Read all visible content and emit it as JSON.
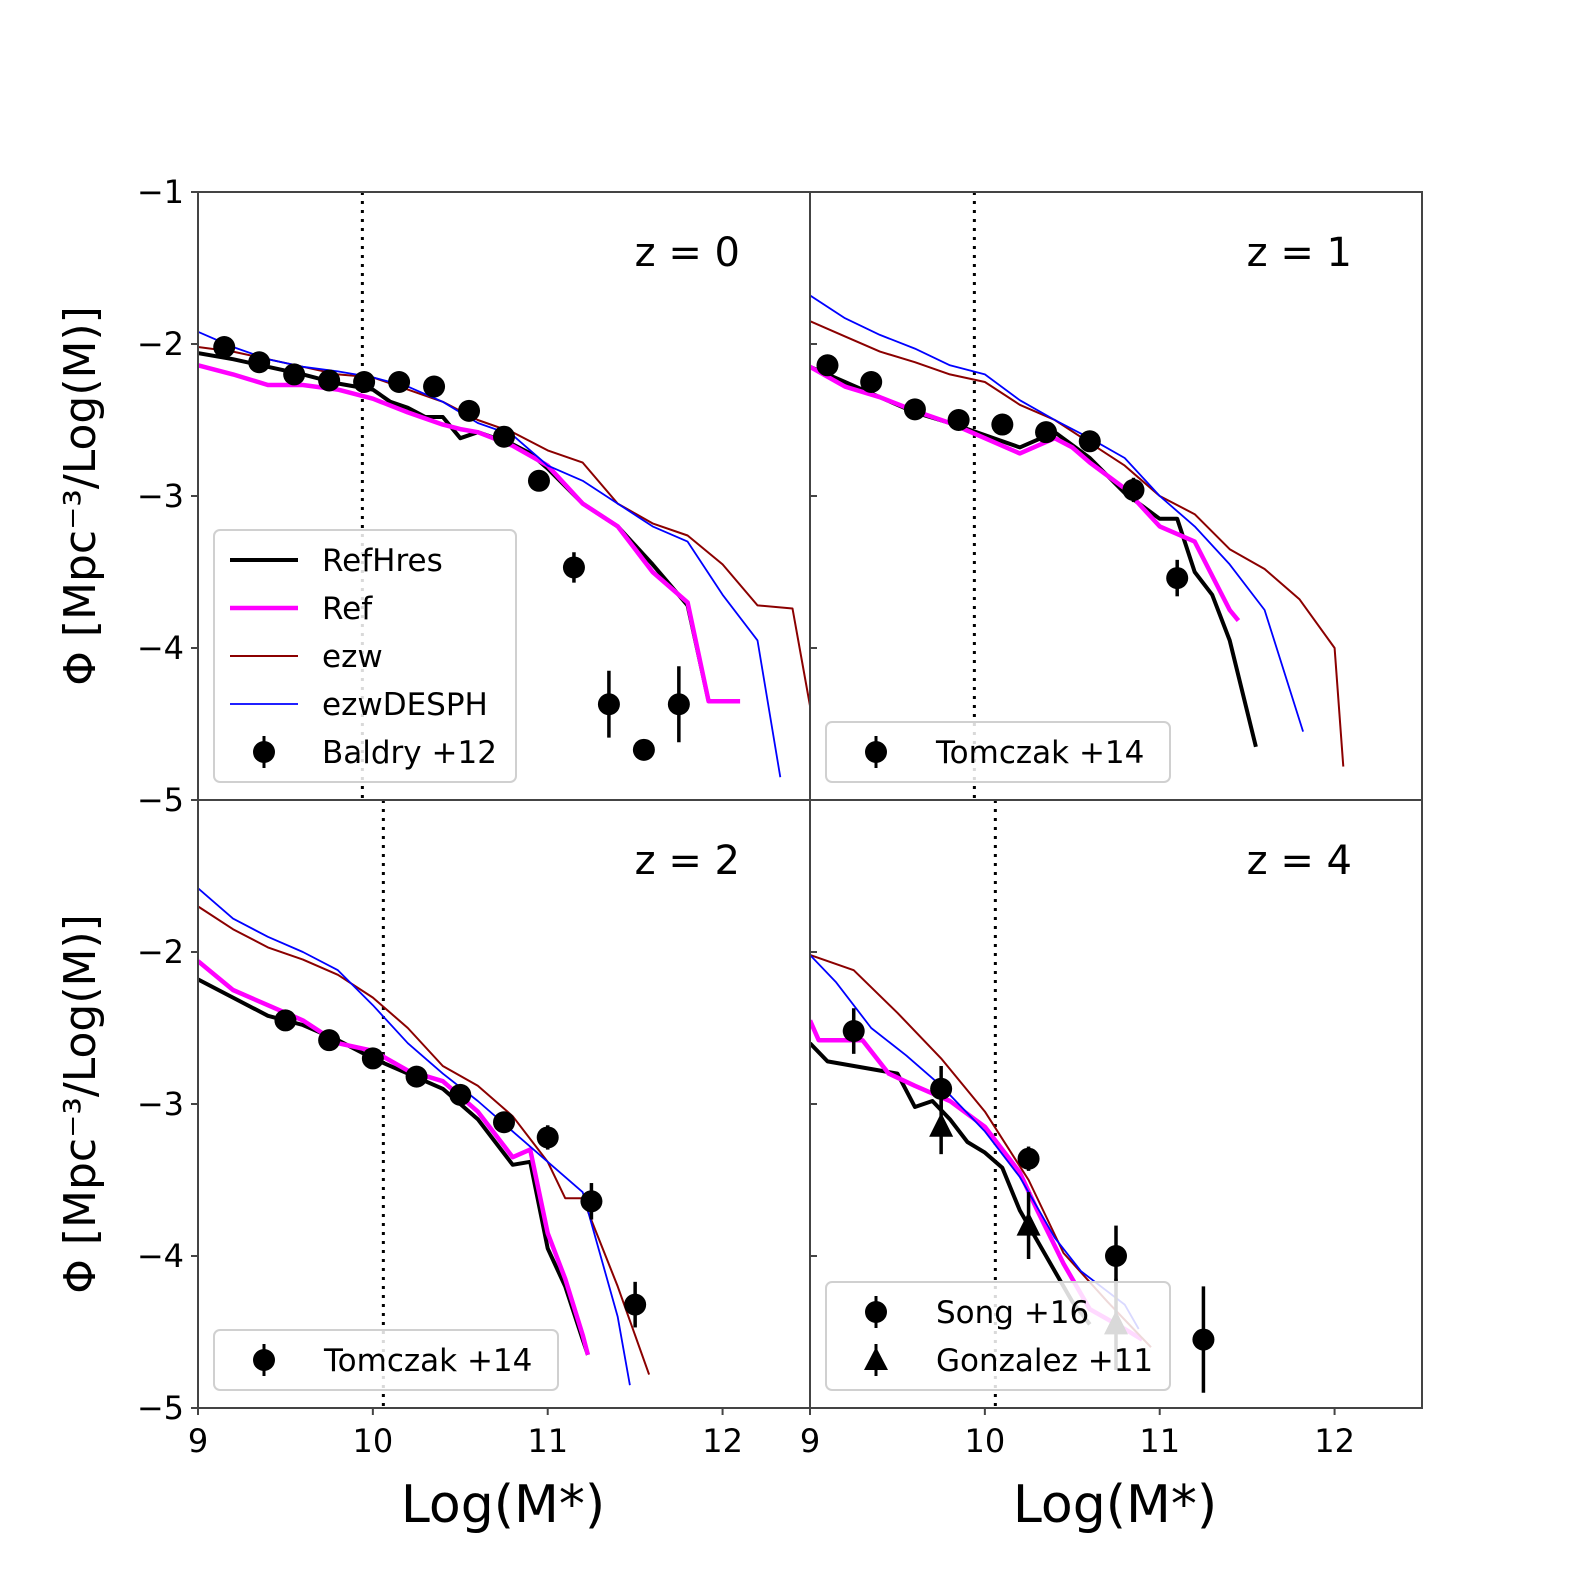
{
  "chart_data": {
    "type": "line",
    "shared": {
      "xlabel": "Log(M*)",
      "ylabel": "Φ [Mpc⁻³/Log(M)]",
      "xlim": [
        9,
        12.5
      ],
      "ylim": [
        -5,
        -1
      ],
      "xticks": [
        "9",
        "10",
        "11",
        "12"
      ],
      "xtick_values": [
        9,
        10,
        11,
        12
      ],
      "yticks": [
        "−1",
        "−2",
        "−3",
        "−4",
        "−5"
      ],
      "ytick_values": [
        -1,
        -2,
        -3,
        -4,
        -5
      ],
      "colors": {
        "RefHres": "#000000",
        "Ref": "#ff00ff",
        "ezw": "#8b0000",
        "ezwDESPH": "#0000ff",
        "obs": "#000000"
      }
    },
    "panels": [
      {
        "label": "z = 0",
        "cutoff": 9.94,
        "series": [
          {
            "name": "RefHres",
            "x": [
              9,
              9.2,
              9.4,
              9.6,
              9.8,
              10,
              10.1,
              10.2,
              10.3,
              10.4,
              10.5,
              10.6,
              10.7,
              10.8,
              10.9,
              11,
              11.2,
              11.4,
              11.6,
              11.8,
              11.92,
              12.05
            ],
            "y": [
              -2.06,
              -2.1,
              -2.15,
              -2.2,
              -2.26,
              -2.3,
              -2.38,
              -2.42,
              -2.48,
              -2.48,
              -2.62,
              -2.58,
              -2.62,
              -2.66,
              -2.72,
              -2.82,
              -3.05,
              -3.2,
              -3.45,
              -3.72,
              -4.35,
              -4.35
            ]
          },
          {
            "name": "Ref",
            "x": [
              9,
              9.2,
              9.4,
              9.6,
              9.8,
              10,
              10.2,
              10.4,
              10.5,
              10.6,
              10.8,
              11,
              11.2,
              11.4,
              11.6,
              11.8,
              11.92,
              12.1
            ],
            "y": [
              -2.14,
              -2.2,
              -2.27,
              -2.27,
              -2.3,
              -2.36,
              -2.45,
              -2.53,
              -2.56,
              -2.58,
              -2.67,
              -2.8,
              -3.05,
              -3.2,
              -3.5,
              -3.7,
              -4.35,
              -4.35
            ]
          },
          {
            "name": "ezw",
            "x": [
              9,
              9.2,
              9.4,
              9.6,
              9.8,
              10,
              10.2,
              10.4,
              10.6,
              10.8,
              11,
              11.2,
              11.4,
              11.6,
              11.8,
              12,
              12.2,
              12.4,
              12.5
            ],
            "y": [
              -2.02,
              -2.05,
              -2.1,
              -2.15,
              -2.2,
              -2.22,
              -2.3,
              -2.38,
              -2.5,
              -2.58,
              -2.7,
              -2.78,
              -3.05,
              -3.18,
              -3.26,
              -3.45,
              -3.72,
              -3.74,
              -4.38
            ]
          },
          {
            "name": "ezwDESPH",
            "x": [
              9,
              9.2,
              9.4,
              9.6,
              9.8,
              10,
              10.2,
              10.4,
              10.6,
              10.8,
              11,
              11.2,
              11.4,
              11.6,
              11.8,
              12,
              12.2,
              12.33
            ],
            "y": [
              -1.92,
              -2.02,
              -2.1,
              -2.15,
              -2.18,
              -2.22,
              -2.28,
              -2.38,
              -2.52,
              -2.6,
              -2.8,
              -2.9,
              -3.05,
              -3.2,
              -3.3,
              -3.65,
              -3.95,
              -4.85
            ]
          }
        ],
        "points": [
          {
            "name": "Baldry +12",
            "marker": "circle",
            "x": [
              9.15,
              9.35,
              9.55,
              9.75,
              9.95,
              10.15,
              10.35,
              10.55,
              10.75,
              10.95,
              11.15,
              11.35,
              11.55,
              11.75
            ],
            "y": [
              -2.02,
              -2.12,
              -2.2,
              -2.24,
              -2.25,
              -2.25,
              -2.28,
              -2.44,
              -2.61,
              -2.9,
              -3.47,
              -4.37,
              -4.67,
              -4.37
            ],
            "err": [
              0.03,
              0.03,
              0.03,
              0.03,
              0.03,
              0.03,
              0.03,
              0.03,
              0.04,
              0.05,
              0.1,
              0.22,
              0,
              0.25
            ]
          }
        ],
        "legend": [
          "RefHres",
          "Ref",
          "ezw",
          "ezwDESPH",
          "Baldry +12"
        ],
        "legend_position": "lower-left"
      },
      {
        "label": "z = 1",
        "cutoff": 9.94,
        "series": [
          {
            "name": "RefHres",
            "x": [
              9,
              9.2,
              9.4,
              9.6,
              9.8,
              10,
              10.2,
              10.4,
              10.6,
              10.8,
              11,
              11.1,
              11.2,
              11.3,
              11.4,
              11.55
            ],
            "y": [
              -2.15,
              -2.25,
              -2.35,
              -2.45,
              -2.52,
              -2.6,
              -2.68,
              -2.58,
              -2.75,
              -2.98,
              -3.15,
              -3.15,
              -3.5,
              -3.65,
              -3.95,
              -4.65
            ]
          },
          {
            "name": "Ref",
            "x": [
              9,
              9.2,
              9.4,
              9.6,
              9.8,
              10,
              10.2,
              10.4,
              10.5,
              10.6,
              10.8,
              11,
              11.2,
              11.4,
              11.45
            ],
            "y": [
              -2.15,
              -2.28,
              -2.35,
              -2.44,
              -2.52,
              -2.62,
              -2.72,
              -2.62,
              -2.68,
              -2.78,
              -2.95,
              -3.2,
              -3.3,
              -3.75,
              -3.82
            ]
          },
          {
            "name": "ezw",
            "x": [
              9,
              9.2,
              9.4,
              9.6,
              9.8,
              10,
              10.2,
              10.4,
              10.6,
              10.8,
              11,
              11.2,
              11.4,
              11.6,
              11.8,
              12,
              12.05
            ],
            "y": [
              -1.85,
              -1.95,
              -2.05,
              -2.12,
              -2.2,
              -2.25,
              -2.4,
              -2.5,
              -2.65,
              -2.8,
              -3.0,
              -3.12,
              -3.35,
              -3.48,
              -3.68,
              -4.0,
              -4.78
            ]
          },
          {
            "name": "ezwDESPH",
            "x": [
              9,
              9.2,
              9.4,
              9.6,
              9.8,
              10,
              10.2,
              10.4,
              10.6,
              10.8,
              11,
              11.2,
              11.4,
              11.6,
              11.82
            ],
            "y": [
              -1.68,
              -1.83,
              -1.94,
              -2.03,
              -2.14,
              -2.2,
              -2.37,
              -2.5,
              -2.62,
              -2.75,
              -3.0,
              -3.2,
              -3.45,
              -3.75,
              -4.55
            ]
          }
        ],
        "points": [
          {
            "name": "Tomczak +14",
            "marker": "circle",
            "x": [
              9.1,
              9.35,
              9.6,
              9.85,
              10.1,
              10.35,
              10.6,
              10.85,
              11.1
            ],
            "y": [
              -2.14,
              -2.25,
              -2.43,
              -2.5,
              -2.53,
              -2.58,
              -2.64,
              -2.96,
              -3.54
            ],
            "err": [
              0.04,
              0.04,
              0.04,
              0.04,
              0.04,
              0.05,
              0.06,
              0.08,
              0.12
            ]
          }
        ],
        "legend": [
          "Tomczak +14"
        ],
        "legend_position": "lower-left"
      },
      {
        "label": "z = 2",
        "cutoff": 10.06,
        "series": [
          {
            "name": "RefHres",
            "x": [
              9,
              9.2,
              9.4,
              9.6,
              9.8,
              10,
              10.2,
              10.4,
              10.6,
              10.8,
              10.9,
              11,
              11.1,
              11.2,
              11.23
            ],
            "y": [
              -2.18,
              -2.3,
              -2.42,
              -2.48,
              -2.58,
              -2.7,
              -2.8,
              -2.9,
              -3.1,
              -3.4,
              -3.38,
              -3.95,
              -4.2,
              -4.55,
              -4.65
            ]
          },
          {
            "name": "Ref",
            "x": [
              9,
              9.2,
              9.4,
              9.6,
              9.8,
              10,
              10.2,
              10.4,
              10.6,
              10.8,
              10.9,
              11,
              11.1,
              11.2,
              11.23
            ],
            "y": [
              -2.06,
              -2.25,
              -2.35,
              -2.45,
              -2.6,
              -2.65,
              -2.78,
              -2.85,
              -3.05,
              -3.35,
              -3.3,
              -3.85,
              -4.15,
              -4.52,
              -4.65
            ]
          },
          {
            "name": "ezw",
            "x": [
              9,
              9.2,
              9.4,
              9.6,
              9.8,
              10,
              10.2,
              10.4,
              10.6,
              10.8,
              11,
              11.1,
              11.2,
              11.4,
              11.58
            ],
            "y": [
              -1.7,
              -1.85,
              -1.97,
              -2.05,
              -2.15,
              -2.3,
              -2.5,
              -2.75,
              -2.88,
              -3.08,
              -3.38,
              -3.62,
              -3.62,
              -4.2,
              -4.78
            ]
          },
          {
            "name": "ezwDESPH",
            "x": [
              9,
              9.2,
              9.4,
              9.6,
              9.8,
              10,
              10.2,
              10.4,
              10.6,
              10.8,
              11,
              11.2,
              11.4,
              11.47
            ],
            "y": [
              -1.58,
              -1.78,
              -1.9,
              -2.0,
              -2.12,
              -2.35,
              -2.6,
              -2.8,
              -2.98,
              -3.18,
              -3.38,
              -3.58,
              -4.4,
              -4.85
            ]
          }
        ],
        "points": [
          {
            "name": "Tomczak +14",
            "marker": "circle",
            "x": [
              9.5,
              9.75,
              10,
              10.25,
              10.5,
              10.75,
              11,
              11.25,
              11.5
            ],
            "y": [
              -2.45,
              -2.58,
              -2.7,
              -2.82,
              -2.94,
              -3.12,
              -3.22,
              -3.64,
              -4.32
            ],
            "err": [
              0.04,
              0.04,
              0.04,
              0.05,
              0.06,
              0.06,
              0.08,
              0.12,
              0.15
            ]
          }
        ],
        "legend": [
          "Tomczak +14"
        ],
        "legend_position": "lower-left"
      },
      {
        "label": "z = 4",
        "cutoff": 10.06,
        "series": [
          {
            "name": "RefHres",
            "x": [
              9,
              9.1,
              9.3,
              9.5,
              9.6,
              9.7,
              9.8,
              9.9,
              10,
              10.1,
              10.2,
              10.3,
              10.4,
              10.5,
              10.6
            ],
            "y": [
              -2.6,
              -2.72,
              -2.76,
              -2.8,
              -3.02,
              -2.98,
              -3.1,
              -3.25,
              -3.32,
              -3.42,
              -3.7,
              -3.9,
              -4.1,
              -4.3,
              -4.45
            ]
          },
          {
            "name": "Ref",
            "x": [
              9,
              9.05,
              9.3,
              9.45,
              9.6,
              9.8,
              10,
              10.2,
              10.3,
              10.45,
              10.6,
              10.8,
              10.9
            ],
            "y": [
              -2.45,
              -2.58,
              -2.58,
              -2.8,
              -2.88,
              -2.98,
              -3.15,
              -3.45,
              -3.7,
              -4.05,
              -4.35,
              -4.48,
              -4.55
            ]
          },
          {
            "name": "ezw",
            "x": [
              9,
              9.25,
              9.5,
              9.75,
              10,
              10.25,
              10.45,
              10.7,
              10.85,
              10.95
            ],
            "y": [
              -2.02,
              -2.12,
              -2.4,
              -2.7,
              -3.05,
              -3.5,
              -3.98,
              -4.3,
              -4.48,
              -4.6
            ]
          },
          {
            "name": "ezwDESPH",
            "x": [
              9,
              9.15,
              9.35,
              9.55,
              9.75,
              10,
              10.2,
              10.4,
              10.55,
              10.8,
              10.88
            ],
            "y": [
              -2.02,
              -2.2,
              -2.5,
              -2.68,
              -2.88,
              -3.18,
              -3.48,
              -3.88,
              -4.1,
              -4.32,
              -4.48
            ]
          }
        ],
        "points": [
          {
            "name": "Song +16",
            "marker": "circle",
            "x": [
              9.25,
              9.75,
              10.25,
              10.75,
              11.25
            ],
            "y": [
              -2.52,
              -2.9,
              -3.36,
              -4.0,
              -4.55
            ],
            "err": [
              0.15,
              0.15,
              0.08,
              0.2,
              0.35
            ]
          },
          {
            "name": "Gonzalez +11",
            "marker": "triangle",
            "x": [
              9.75,
              10.25,
              10.75
            ],
            "y": [
              -3.15,
              -3.8,
              -4.45
            ],
            "err": [
              0.18,
              0.22,
              0.3
            ]
          }
        ],
        "legend": [
          "Song +16",
          "Gonzalez +11"
        ],
        "legend_position": "lower-left"
      }
    ]
  }
}
